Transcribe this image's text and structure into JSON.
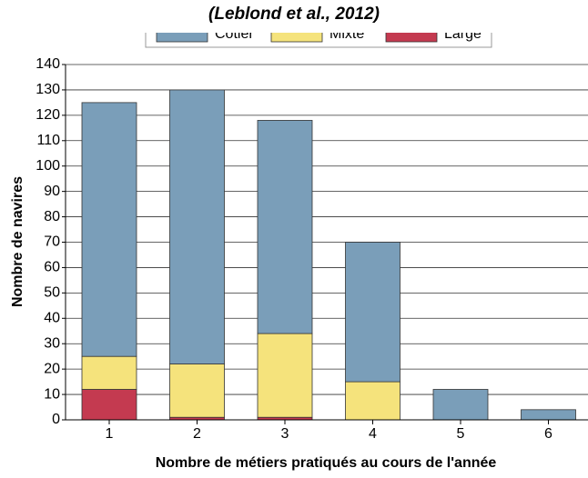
{
  "chart_data": {
    "type": "stacked_bar",
    "title": "(Leblond et al., 2012)",
    "x_label": "Nombre de métiers pratiqués au cours de l'année",
    "y_label": "Nombre de navires",
    "categories": [
      "1",
      "2",
      "3",
      "4",
      "5",
      "6"
    ],
    "series": [
      {
        "name": "Large",
        "color": "#c43a50",
        "values": [
          12,
          1,
          1,
          0,
          0,
          0
        ]
      },
      {
        "name": "Mixte",
        "color": "#f5e37c",
        "values": [
          13,
          21,
          33,
          15,
          0,
          0
        ]
      },
      {
        "name": "Côtier",
        "color": "#7a9eb9",
        "values": [
          100,
          108,
          84,
          55,
          12,
          4
        ]
      }
    ],
    "legend_order": [
      "Côtier",
      "Mixte",
      "Large"
    ],
    "ylim": [
      0,
      140
    ],
    "yticks": [
      0,
      10,
      20,
      30,
      40,
      50,
      60,
      70,
      80,
      90,
      100,
      110,
      120,
      130,
      140
    ],
    "grid": true
  }
}
